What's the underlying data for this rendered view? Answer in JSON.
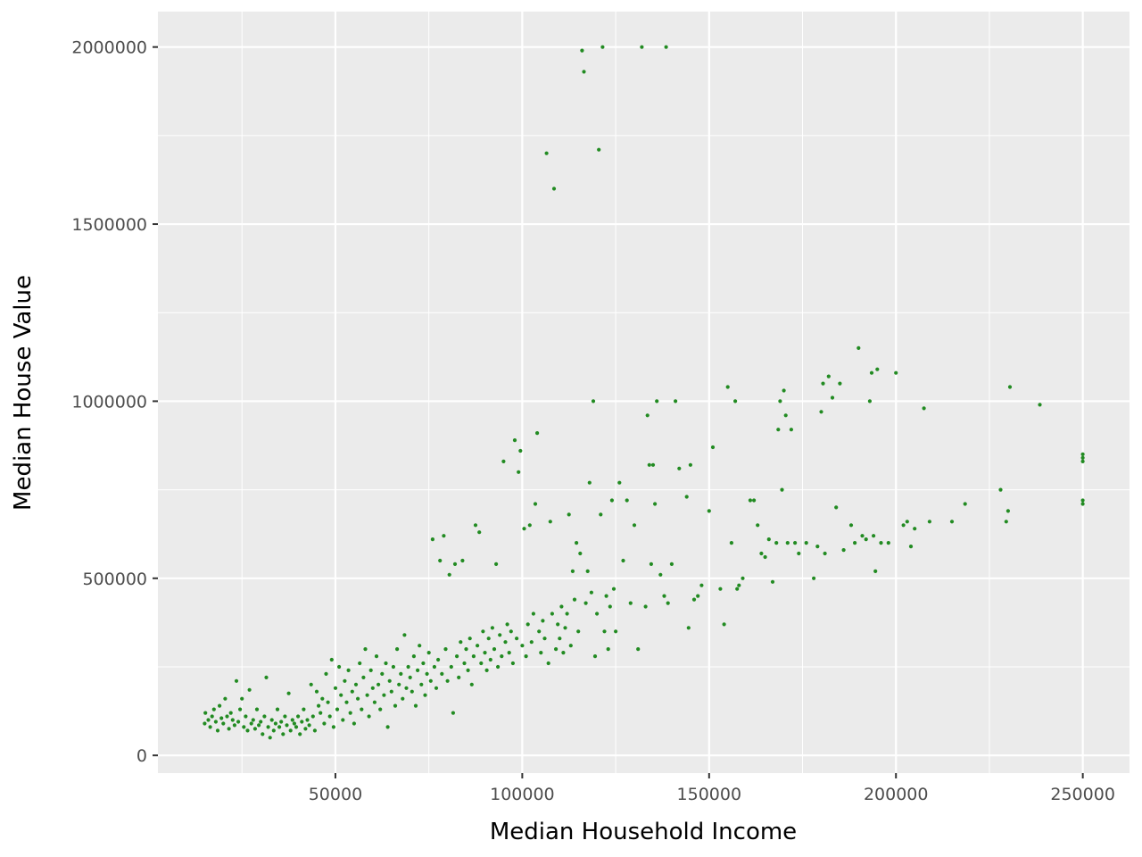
{
  "chart_data": {
    "type": "scatter",
    "title": "",
    "xlabel": "Median Household Income",
    "ylabel": "Median House Value",
    "xlim": [
      2500,
      262500
    ],
    "ylim": [
      -50000,
      2100000
    ],
    "x_ticks": [
      50000,
      100000,
      150000,
      200000,
      250000
    ],
    "x_tick_labels": [
      "50000",
      "100000",
      "150000",
      "200000",
      "250000"
    ],
    "y_ticks": [
      0,
      500000,
      1000000,
      1500000,
      2000000
    ],
    "y_tick_labels": [
      "0",
      "500000",
      "1000000",
      "1500000",
      "2000000"
    ],
    "grid": true,
    "legend": "none",
    "colors": {
      "panel": "#ebebeb",
      "grid": "#ffffff",
      "point": "#228b22"
    },
    "points": [
      [
        15000,
        90000
      ],
      [
        15200,
        120000
      ],
      [
        16000,
        100000
      ],
      [
        16500,
        80000
      ],
      [
        17000,
        110000
      ],
      [
        17500,
        130000
      ],
      [
        18000,
        95000
      ],
      [
        18500,
        70000
      ],
      [
        19000,
        140000
      ],
      [
        19500,
        105000
      ],
      [
        20000,
        90000
      ],
      [
        20500,
        160000
      ],
      [
        21000,
        110000
      ],
      [
        21500,
        75000
      ],
      [
        22000,
        120000
      ],
      [
        22500,
        100000
      ],
      [
        23000,
        85000
      ],
      [
        23500,
        210000
      ],
      [
        24000,
        95000
      ],
      [
        24500,
        130000
      ],
      [
        25000,
        160000
      ],
      [
        25500,
        80000
      ],
      [
        26000,
        110000
      ],
      [
        26500,
        70000
      ],
      [
        27000,
        185000
      ],
      [
        27500,
        90000
      ],
      [
        28000,
        100000
      ],
      [
        28500,
        75000
      ],
      [
        29000,
        130000
      ],
      [
        29500,
        85000
      ],
      [
        30000,
        95000
      ],
      [
        30500,
        60000
      ],
      [
        31000,
        110000
      ],
      [
        31500,
        220000
      ],
      [
        32000,
        80000
      ],
      [
        32500,
        50000
      ],
      [
        33000,
        100000
      ],
      [
        33500,
        70000
      ],
      [
        34000,
        90000
      ],
      [
        34500,
        130000
      ],
      [
        35000,
        80000
      ],
      [
        35500,
        95000
      ],
      [
        36000,
        60000
      ],
      [
        36500,
        110000
      ],
      [
        37000,
        85000
      ],
      [
        37500,
        175000
      ],
      [
        38000,
        70000
      ],
      [
        38500,
        100000
      ],
      [
        39000,
        90000
      ],
      [
        39500,
        80000
      ],
      [
        40000,
        110000
      ],
      [
        40500,
        60000
      ],
      [
        41000,
        95000
      ],
      [
        41500,
        130000
      ],
      [
        42000,
        75000
      ],
      [
        42500,
        100000
      ],
      [
        43000,
        85000
      ],
      [
        43500,
        200000
      ],
      [
        44000,
        110000
      ],
      [
        44500,
        70000
      ],
      [
        45000,
        180000
      ],
      [
        45500,
        140000
      ],
      [
        46000,
        120000
      ],
      [
        46500,
        160000
      ],
      [
        47000,
        90000
      ],
      [
        47500,
        230000
      ],
      [
        48000,
        150000
      ],
      [
        48500,
        110000
      ],
      [
        49000,
        270000
      ],
      [
        49500,
        80000
      ],
      [
        50000,
        190000
      ],
      [
        50500,
        130000
      ],
      [
        51000,
        250000
      ],
      [
        51500,
        170000
      ],
      [
        52000,
        100000
      ],
      [
        52500,
        210000
      ],
      [
        53000,
        150000
      ],
      [
        53500,
        240000
      ],
      [
        54000,
        120000
      ],
      [
        54500,
        180000
      ],
      [
        55000,
        90000
      ],
      [
        55500,
        200000
      ],
      [
        56000,
        160000
      ],
      [
        56500,
        260000
      ],
      [
        57000,
        130000
      ],
      [
        57500,
        220000
      ],
      [
        58000,
        300000
      ],
      [
        58500,
        170000
      ],
      [
        59000,
        110000
      ],
      [
        59500,
        240000
      ],
      [
        60000,
        190000
      ],
      [
        60500,
        150000
      ],
      [
        61000,
        280000
      ],
      [
        61500,
        200000
      ],
      [
        62000,
        130000
      ],
      [
        62500,
        230000
      ],
      [
        63000,
        170000
      ],
      [
        63500,
        260000
      ],
      [
        64000,
        80000
      ],
      [
        64500,
        210000
      ],
      [
        65000,
        180000
      ],
      [
        65500,
        250000
      ],
      [
        66000,
        140000
      ],
      [
        66500,
        300000
      ],
      [
        67000,
        200000
      ],
      [
        67500,
        230000
      ],
      [
        68000,
        160000
      ],
      [
        68500,
        340000
      ],
      [
        69000,
        190000
      ],
      [
        69500,
        250000
      ],
      [
        70000,
        220000
      ],
      [
        70500,
        180000
      ],
      [
        71000,
        280000
      ],
      [
        71500,
        140000
      ],
      [
        72000,
        240000
      ],
      [
        72500,
        310000
      ],
      [
        73000,
        200000
      ],
      [
        73500,
        260000
      ],
      [
        74000,
        170000
      ],
      [
        74500,
        230000
      ],
      [
        75000,
        290000
      ],
      [
        75500,
        210000
      ],
      [
        76000,
        610000
      ],
      [
        76500,
        250000
      ],
      [
        77000,
        190000
      ],
      [
        77500,
        270000
      ],
      [
        78000,
        550000
      ],
      [
        78500,
        230000
      ],
      [
        79000,
        620000
      ],
      [
        79500,
        300000
      ],
      [
        80000,
        210000
      ],
      [
        80500,
        510000
      ],
      [
        81000,
        250000
      ],
      [
        81500,
        120000
      ],
      [
        82000,
        540000
      ],
      [
        82500,
        280000
      ],
      [
        83000,
        220000
      ],
      [
        83500,
        320000
      ],
      [
        84000,
        550000
      ],
      [
        84500,
        260000
      ],
      [
        85000,
        300000
      ],
      [
        85500,
        240000
      ],
      [
        86000,
        330000
      ],
      [
        86500,
        200000
      ],
      [
        87000,
        280000
      ],
      [
        87500,
        650000
      ],
      [
        88000,
        310000
      ],
      [
        88500,
        630000
      ],
      [
        89000,
        260000
      ],
      [
        89500,
        350000
      ],
      [
        90000,
        290000
      ],
      [
        90500,
        240000
      ],
      [
        91000,
        330000
      ],
      [
        91500,
        270000
      ],
      [
        92000,
        360000
      ],
      [
        92500,
        300000
      ],
      [
        93000,
        540000
      ],
      [
        93500,
        250000
      ],
      [
        94000,
        340000
      ],
      [
        94500,
        280000
      ],
      [
        95000,
        830000
      ],
      [
        95500,
        320000
      ],
      [
        96000,
        370000
      ],
      [
        96500,
        290000
      ],
      [
        97000,
        350000
      ],
      [
        97500,
        260000
      ],
      [
        98000,
        890000
      ],
      [
        98500,
        330000
      ],
      [
        99000,
        800000
      ],
      [
        99500,
        860000
      ],
      [
        100000,
        310000
      ],
      [
        100500,
        640000
      ],
      [
        101000,
        280000
      ],
      [
        101500,
        370000
      ],
      [
        102000,
        650000
      ],
      [
        102500,
        320000
      ],
      [
        103000,
        400000
      ],
      [
        103500,
        710000
      ],
      [
        104000,
        910000
      ],
      [
        104500,
        350000
      ],
      [
        105000,
        290000
      ],
      [
        105500,
        380000
      ],
      [
        106000,
        330000
      ],
      [
        106500,
        1700000
      ],
      [
        107000,
        260000
      ],
      [
        107500,
        660000
      ],
      [
        108000,
        400000
      ],
      [
        108500,
        1600000
      ],
      [
        109000,
        300000
      ],
      [
        109500,
        370000
      ],
      [
        110000,
        330000
      ],
      [
        110500,
        420000
      ],
      [
        111000,
        290000
      ],
      [
        111500,
        360000
      ],
      [
        112000,
        400000
      ],
      [
        112500,
        680000
      ],
      [
        113000,
        310000
      ],
      [
        113500,
        520000
      ],
      [
        114000,
        440000
      ],
      [
        114500,
        600000
      ],
      [
        115000,
        350000
      ],
      [
        115500,
        570000
      ],
      [
        116000,
        1990000
      ],
      [
        116500,
        1930000
      ],
      [
        117000,
        430000
      ],
      [
        117500,
        520000
      ],
      [
        118000,
        770000
      ],
      [
        118500,
        460000
      ],
      [
        119000,
        1000000
      ],
      [
        119500,
        280000
      ],
      [
        120000,
        400000
      ],
      [
        120500,
        1710000
      ],
      [
        121000,
        680000
      ],
      [
        121500,
        2000000
      ],
      [
        122000,
        350000
      ],
      [
        122500,
        450000
      ],
      [
        123000,
        300000
      ],
      [
        123500,
        420000
      ],
      [
        124000,
        720000
      ],
      [
        124500,
        470000
      ],
      [
        125000,
        350000
      ],
      [
        126000,
        770000
      ],
      [
        127000,
        550000
      ],
      [
        128000,
        720000
      ],
      [
        129000,
        430000
      ],
      [
        130000,
        650000
      ],
      [
        131000,
        300000
      ],
      [
        132000,
        2000000
      ],
      [
        133000,
        420000
      ],
      [
        133500,
        960000
      ],
      [
        134000,
        820000
      ],
      [
        134500,
        540000
      ],
      [
        135000,
        820000
      ],
      [
        135500,
        710000
      ],
      [
        136000,
        1000000
      ],
      [
        137000,
        510000
      ],
      [
        138000,
        450000
      ],
      [
        138500,
        2000000
      ],
      [
        139000,
        430000
      ],
      [
        140000,
        540000
      ],
      [
        141000,
        1000000
      ],
      [
        142000,
        810000
      ],
      [
        144000,
        730000
      ],
      [
        144500,
        360000
      ],
      [
        145000,
        820000
      ],
      [
        146000,
        440000
      ],
      [
        147000,
        450000
      ],
      [
        148000,
        480000
      ],
      [
        150000,
        690000
      ],
      [
        151000,
        870000
      ],
      [
        153000,
        470000
      ],
      [
        154000,
        370000
      ],
      [
        155000,
        1040000
      ],
      [
        156000,
        600000
      ],
      [
        157000,
        1000000
      ],
      [
        157500,
        470000
      ],
      [
        158000,
        480000
      ],
      [
        159000,
        500000
      ],
      [
        161000,
        720000
      ],
      [
        162000,
        720000
      ],
      [
        163000,
        650000
      ],
      [
        164000,
        570000
      ],
      [
        165000,
        560000
      ],
      [
        166000,
        610000
      ],
      [
        167000,
        490000
      ],
      [
        168000,
        600000
      ],
      [
        168500,
        920000
      ],
      [
        169000,
        1000000
      ],
      [
        169500,
        750000
      ],
      [
        170000,
        1030000
      ],
      [
        170500,
        960000
      ],
      [
        171000,
        600000
      ],
      [
        172000,
        920000
      ],
      [
        173000,
        600000
      ],
      [
        174000,
        570000
      ],
      [
        176000,
        600000
      ],
      [
        178000,
        500000
      ],
      [
        179000,
        590000
      ],
      [
        180000,
        970000
      ],
      [
        180500,
        1050000
      ],
      [
        181000,
        570000
      ],
      [
        182000,
        1070000
      ],
      [
        183000,
        1010000
      ],
      [
        184000,
        700000
      ],
      [
        185000,
        1050000
      ],
      [
        186000,
        580000
      ],
      [
        188000,
        650000
      ],
      [
        189000,
        600000
      ],
      [
        190000,
        1150000
      ],
      [
        191000,
        620000
      ],
      [
        192000,
        610000
      ],
      [
        193000,
        1000000
      ],
      [
        193500,
        1080000
      ],
      [
        194000,
        620000
      ],
      [
        194500,
        520000
      ],
      [
        195000,
        1090000
      ],
      [
        196000,
        600000
      ],
      [
        198000,
        600000
      ],
      [
        200000,
        1080000
      ],
      [
        202000,
        650000
      ],
      [
        203000,
        660000
      ],
      [
        204000,
        590000
      ],
      [
        205000,
        640000
      ],
      [
        207500,
        980000
      ],
      [
        209000,
        660000
      ],
      [
        215000,
        660000
      ],
      [
        218500,
        710000
      ],
      [
        228000,
        750000
      ],
      [
        229500,
        660000
      ],
      [
        230000,
        690000
      ],
      [
        230500,
        1040000
      ],
      [
        238500,
        990000
      ],
      [
        250000,
        830000
      ],
      [
        250000,
        850000
      ],
      [
        250000,
        720000
      ],
      [
        250000,
        710000
      ],
      [
        250000,
        840000
      ]
    ]
  }
}
